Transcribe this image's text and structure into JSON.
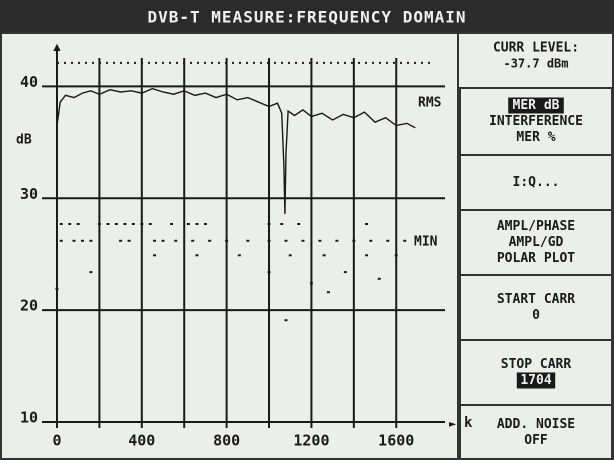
{
  "header": {
    "title": "DVB-T MEASURE:FREQUENCY DOMAIN"
  },
  "menu": {
    "level": [
      "CURR LEVEL:",
      "-37.7 dBm"
    ],
    "items": [
      {
        "lines": [
          "MER dB",
          "INTERFERENCE",
          "MER %"
        ],
        "selected": 0
      },
      {
        "lines": [
          "I:Q..."
        ]
      },
      {
        "lines": [
          "AMPL/PHASE",
          "AMPL/GD",
          "POLAR PLOT"
        ]
      },
      {
        "lines": [
          "START CARR",
          "0"
        ]
      },
      {
        "lines": [
          "STOP CARR",
          "1704"
        ],
        "selected": 1
      },
      {
        "lines": [
          "ADD. NOISE",
          "OFF"
        ]
      }
    ]
  },
  "chart_data": {
    "type": "line",
    "ylabel": "dB",
    "xlabel": "k",
    "xlim": [
      0,
      1830
    ],
    "ylim": [
      10,
      43.7
    ],
    "xticks": [
      0,
      400,
      800,
      1200,
      1600
    ],
    "minor_xticks": [
      200,
      600,
      1000,
      1400
    ],
    "yticks": [
      10,
      20,
      30,
      40
    ],
    "reference_lines": [
      42.1
    ],
    "grid": true,
    "series": [
      {
        "name": "RMS",
        "type": "line",
        "color": "#1a1a1a",
        "x": [
          0,
          15,
          40,
          80,
          120,
          160,
          200,
          250,
          300,
          350,
          400,
          450,
          500,
          550,
          600,
          650,
          700,
          750,
          800,
          850,
          900,
          950,
          1000,
          1040,
          1060,
          1070,
          1075,
          1080,
          1090,
          1120,
          1160,
          1200,
          1250,
          1300,
          1350,
          1400,
          1450,
          1500,
          1550,
          1600,
          1650,
          1690
        ],
        "values": [
          36.5,
          38.6,
          39.2,
          39.0,
          39.4,
          39.6,
          39.3,
          39.7,
          39.5,
          39.6,
          39.4,
          39.8,
          39.5,
          39.3,
          39.6,
          39.2,
          39.4,
          39.0,
          39.3,
          38.8,
          39.0,
          38.6,
          38.2,
          38.5,
          37.6,
          33.0,
          28.6,
          34.0,
          37.8,
          37.4,
          37.9,
          37.3,
          37.6,
          37.0,
          37.5,
          37.2,
          37.7,
          36.8,
          37.2,
          36.5,
          36.7,
          36.3
        ]
      },
      {
        "name": "MIN",
        "type": "scatter",
        "color": "#1a1a1a",
        "x": [
          20,
          60,
          100,
          200,
          240,
          280,
          320,
          360,
          400,
          440,
          540,
          620,
          660,
          700,
          1000,
          1060,
          1140,
          1460,
          20,
          80,
          120,
          160,
          300,
          340,
          460,
          500,
          560,
          640,
          720,
          800,
          900,
          1000,
          1080,
          1160,
          1240,
          1320,
          1400,
          1480,
          1560,
          1640,
          460,
          660,
          860,
          1100,
          1260,
          1460,
          1600,
          160,
          1000,
          1360,
          1520,
          1200,
          1280,
          1080,
          0
        ],
        "values": [
          27.7,
          27.7,
          27.7,
          27.7,
          27.7,
          27.7,
          27.7,
          27.7,
          27.7,
          27.7,
          27.7,
          27.7,
          27.7,
          27.7,
          27.7,
          27.7,
          27.7,
          27.7,
          26.2,
          26.2,
          26.2,
          26.2,
          26.2,
          26.2,
          26.2,
          26.2,
          26.2,
          26.2,
          26.2,
          26.2,
          26.2,
          26.2,
          26.2,
          26.2,
          26.2,
          26.2,
          26.2,
          26.2,
          26.2,
          26.2,
          24.9,
          24.9,
          24.9,
          24.9,
          24.9,
          24.9,
          24.9,
          23.4,
          23.4,
          23.4,
          22.8,
          22.4,
          21.6,
          19.1,
          21.9
        ]
      }
    ]
  }
}
